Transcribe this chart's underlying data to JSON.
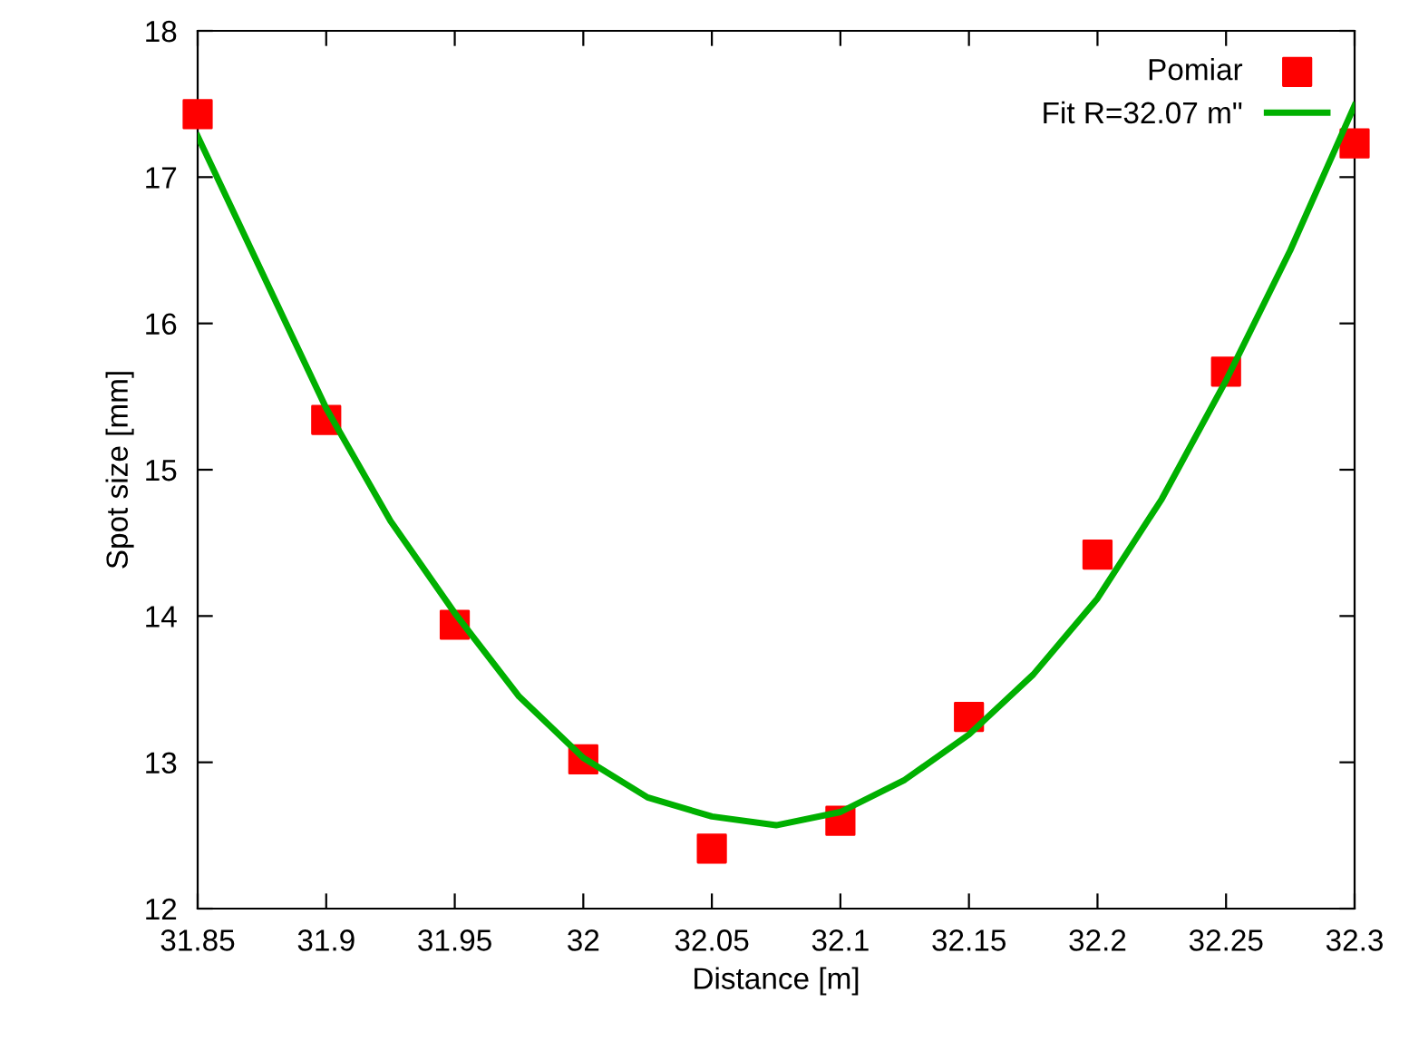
{
  "chart_data": {
    "type": "scatter",
    "xlabel": "Distance [m]",
    "ylabel": "Spot size [mm]",
    "xlim": [
      31.85,
      32.3
    ],
    "ylim": [
      12,
      18
    ],
    "xticks": [
      31.85,
      31.9,
      31.95,
      32,
      32.05,
      32.1,
      32.15,
      32.2,
      32.25,
      32.3
    ],
    "yticks": [
      12,
      13,
      14,
      15,
      16,
      17,
      18
    ],
    "grid": false,
    "legend": "top right",
    "series": [
      {
        "name": "Pomiar",
        "marker": "square",
        "color": "#ff0000",
        "x": [
          31.85,
          31.9,
          31.95,
          32.0,
          32.05,
          32.1,
          32.15,
          32.2,
          32.25,
          32.3
        ],
        "values": [
          17.43,
          15.34,
          13.94,
          13.02,
          12.41,
          12.6,
          13.31,
          14.42,
          15.67,
          17.23
        ]
      },
      {
        "name": "Fit R=32.07 m\"",
        "type": "line",
        "marker": "none",
        "line_style": "solid",
        "color": "#00b000",
        "x": [
          31.85,
          31.875,
          31.9,
          31.925,
          31.95,
          31.975,
          32.0,
          32.025,
          32.05,
          32.075,
          32.1,
          32.125,
          32.15,
          32.175,
          32.2,
          32.225,
          32.25,
          32.275,
          32.3
        ],
        "values": [
          17.28,
          16.35,
          15.42,
          14.65,
          14.02,
          13.45,
          13.03,
          12.76,
          12.63,
          12.57,
          12.66,
          12.88,
          13.19,
          13.6,
          14.12,
          14.8,
          15.61,
          16.5,
          17.49
        ]
      }
    ]
  }
}
